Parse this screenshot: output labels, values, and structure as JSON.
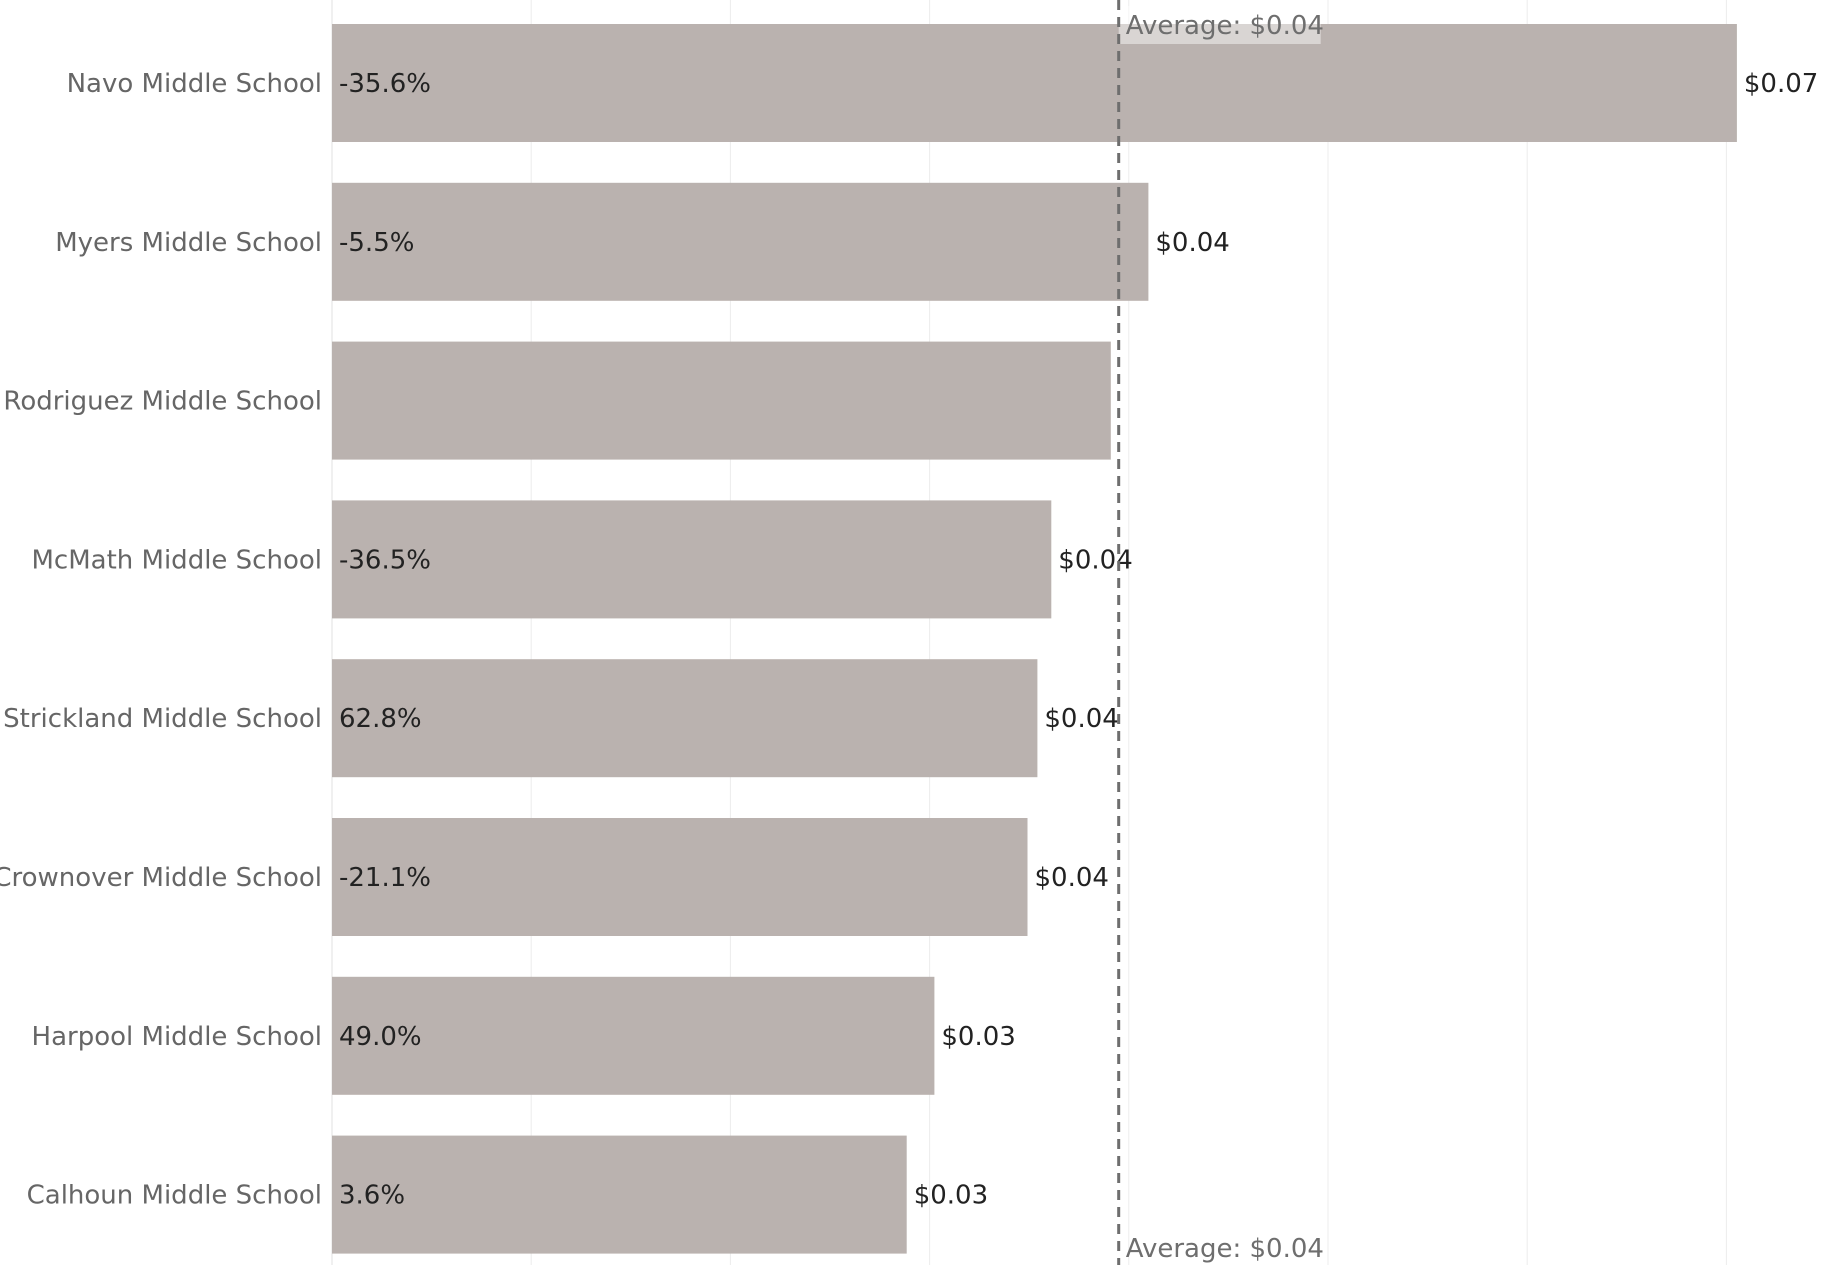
{
  "colors": {
    "bar": "#bab2af",
    "grid": "#ececec",
    "average_line": "#6e6e6e",
    "category_text": "#666666",
    "value_text": "#222222"
  },
  "chart_data": {
    "type": "bar",
    "orientation": "horizontal",
    "title": "",
    "xlabel": "",
    "ylabel": "",
    "xlim": [
      0,
      0.0706
    ],
    "grid": true,
    "categories": [
      "Navo Middle School",
      "Myers Middle School",
      "Rodriguez Middle School",
      "McMath Middle School",
      "Strickland Middle School",
      "Crownover Middle School",
      "Harpool Middle School",
      "Calhoun Middle School"
    ],
    "values": [
      0.0709,
      0.0412,
      0.0393,
      0.0363,
      0.0356,
      0.0351,
      0.0304,
      0.029
    ],
    "value_labels": [
      "$0.07",
      "$0.04",
      "",
      "$0.04",
      "$0.04",
      "$0.04",
      "$0.03",
      "$0.03"
    ],
    "change_labels": [
      "-35.6%",
      "-5.5%",
      "",
      "-36.5%",
      "62.8%",
      "-21.1%",
      "49.0%",
      "3.6%"
    ],
    "reference_line": {
      "value": 0.0397,
      "label": "Average: $0.04"
    }
  }
}
